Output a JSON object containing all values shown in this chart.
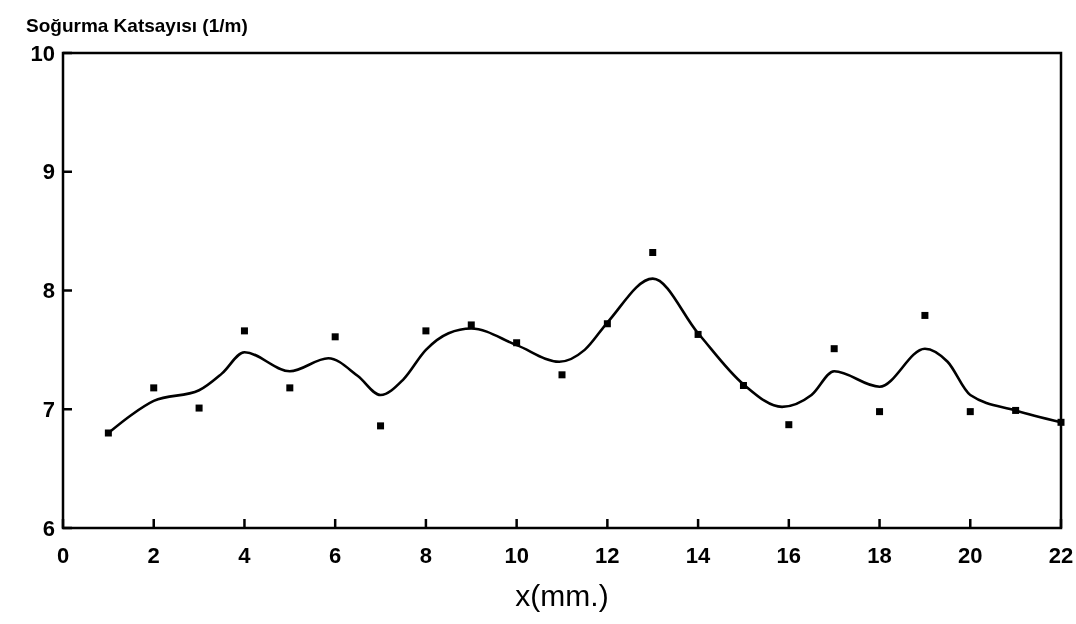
{
  "chart_data": {
    "type": "scatter",
    "ylabel": "Soğurma Katsayısı (1/m)",
    "xlabel": "x(mm.)",
    "xlim": [
      0,
      22
    ],
    "xticks": [
      0,
      2,
      4,
      6,
      8,
      10,
      12,
      14,
      16,
      18,
      20,
      22
    ],
    "ylim": [
      6,
      10
    ],
    "yticks": [
      6,
      7,
      8,
      9,
      10
    ],
    "grid": false,
    "series": [
      {
        "color": "#000000",
        "marker": "square",
        "x": [
          1,
          2,
          3,
          4,
          5,
          6,
          7,
          8,
          9,
          10,
          11,
          12,
          13,
          14,
          15,
          16,
          17,
          18,
          19,
          20,
          21,
          22
        ],
        "values": [
          6.8,
          7.18,
          7.01,
          7.66,
          7.18,
          7.61,
          6.86,
          7.66,
          7.71,
          7.56,
          7.29,
          7.72,
          8.32,
          7.63,
          7.2,
          6.87,
          7.51,
          6.98,
          7.79,
          6.98,
          6.99,
          6.89
        ]
      },
      {
        "type": "line",
        "color": "#000000",
        "marker": "none",
        "line_style": "solid",
        "x": [
          1,
          1.5,
          2,
          3,
          3.5,
          4,
          5,
          5.85,
          6.5,
          7,
          7.5,
          8,
          8.5,
          9,
          10,
          10.94,
          11.5,
          12,
          13,
          14,
          15,
          15.85,
          16.5,
          17,
          18,
          19,
          19.5,
          20,
          21,
          22
        ],
        "values": [
          6.8,
          6.95,
          7.07,
          7.16,
          7.3,
          7.48,
          7.32,
          7.43,
          7.28,
          7.12,
          7.25,
          7.5,
          7.64,
          7.68,
          7.54,
          7.4,
          7.5,
          7.73,
          8.1,
          7.64,
          7.21,
          7.02,
          7.12,
          7.32,
          7.19,
          7.51,
          7.4,
          7.12,
          6.99,
          6.89
        ]
      }
    ]
  }
}
